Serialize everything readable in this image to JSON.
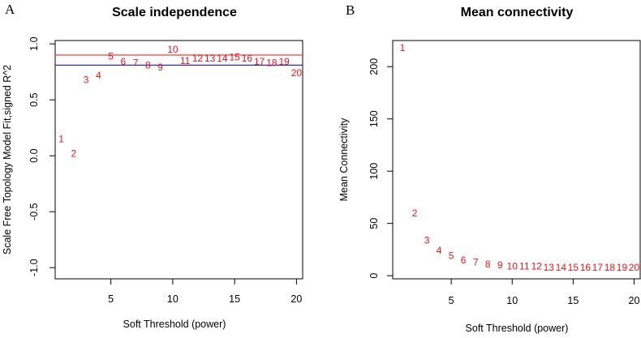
{
  "chart_data": [
    {
      "type": "scatter",
      "panel_label": "A",
      "title": "Scale independence",
      "xlabel": "Soft Threshold (power)",
      "ylabel": "Scale Free Topology Model Fit,signed R^2",
      "xlim": [
        0.5,
        20.5
      ],
      "ylim": [
        -1.1,
        1.03
      ],
      "xticks": [
        5,
        10,
        15,
        20
      ],
      "xtick_labels": [
        "5",
        "10",
        "15",
        "20"
      ],
      "yticks": [
        -1.0,
        -0.5,
        0.0,
        0.5,
        1.0
      ],
      "ytick_labels": [
        "-1.0",
        "-0.5",
        "0.0",
        "0.5",
        "1.0"
      ],
      "marker": "text-labels",
      "marker_color": "#e8141b",
      "hlines": [
        {
          "y": 0.9,
          "color": "#f05050"
        },
        {
          "y": 0.81,
          "color": "#2a2ad0"
        }
      ],
      "points": [
        {
          "x": 1,
          "y": 0.15,
          "label": "1"
        },
        {
          "x": 2,
          "y": 0.02,
          "label": "2"
        },
        {
          "x": 3,
          "y": 0.68,
          "label": "3"
        },
        {
          "x": 4,
          "y": 0.72,
          "label": "4"
        },
        {
          "x": 5,
          "y": 0.89,
          "label": "5"
        },
        {
          "x": 6,
          "y": 0.84,
          "label": "6"
        },
        {
          "x": 7,
          "y": 0.83,
          "label": "7"
        },
        {
          "x": 8,
          "y": 0.81,
          "label": "8"
        },
        {
          "x": 9,
          "y": 0.79,
          "label": "9"
        },
        {
          "x": 10,
          "y": 0.95,
          "label": "10"
        },
        {
          "x": 11,
          "y": 0.85,
          "label": "11"
        },
        {
          "x": 12,
          "y": 0.87,
          "label": "12"
        },
        {
          "x": 13,
          "y": 0.87,
          "label": "13"
        },
        {
          "x": 14,
          "y": 0.87,
          "label": "14"
        },
        {
          "x": 15,
          "y": 0.88,
          "label": "15"
        },
        {
          "x": 16,
          "y": 0.87,
          "label": "16"
        },
        {
          "x": 17,
          "y": 0.84,
          "label": "17"
        },
        {
          "x": 18,
          "y": 0.83,
          "label": "18"
        },
        {
          "x": 19,
          "y": 0.84,
          "label": "19"
        },
        {
          "x": 20,
          "y": 0.74,
          "label": "20"
        }
      ]
    },
    {
      "type": "scatter",
      "panel_label": "B",
      "title": "Mean connectivity",
      "xlabel": "Soft Threshold (power)",
      "ylabel": "Mean Connectivity",
      "xlim": [
        0.2,
        20.5
      ],
      "ylim": [
        -3,
        225
      ],
      "xticks": [
        5,
        10,
        15,
        20
      ],
      "xtick_labels": [
        "5",
        "10",
        "15",
        "20"
      ],
      "yticks": [
        0,
        50,
        100,
        150,
        200
      ],
      "ytick_labels": [
        "0",
        "50",
        "100",
        "150",
        "200"
      ],
      "marker": "text-labels",
      "marker_color": "#e8141b",
      "hlines": [],
      "points": [
        {
          "x": 1,
          "y": 218,
          "label": "1"
        },
        {
          "x": 2,
          "y": 60,
          "label": "2"
        },
        {
          "x": 3,
          "y": 34,
          "label": "3"
        },
        {
          "x": 4,
          "y": 24,
          "label": "4"
        },
        {
          "x": 5,
          "y": 19,
          "label": "5"
        },
        {
          "x": 6,
          "y": 15,
          "label": "6"
        },
        {
          "x": 7,
          "y": 13,
          "label": "7"
        },
        {
          "x": 8,
          "y": 11,
          "label": "8"
        },
        {
          "x": 9,
          "y": 10,
          "label": "9"
        },
        {
          "x": 10,
          "y": 9,
          "label": "10"
        },
        {
          "x": 11,
          "y": 9,
          "label": "11"
        },
        {
          "x": 12,
          "y": 9,
          "label": "12"
        },
        {
          "x": 13,
          "y": 8,
          "label": "13"
        },
        {
          "x": 14,
          "y": 8,
          "label": "14"
        },
        {
          "x": 15,
          "y": 8,
          "label": "15"
        },
        {
          "x": 16,
          "y": 8,
          "label": "16"
        },
        {
          "x": 17,
          "y": 8,
          "label": "17"
        },
        {
          "x": 18,
          "y": 8,
          "label": "18"
        },
        {
          "x": 19,
          "y": 8,
          "label": "19"
        },
        {
          "x": 20,
          "y": 8,
          "label": "20"
        }
      ]
    }
  ]
}
